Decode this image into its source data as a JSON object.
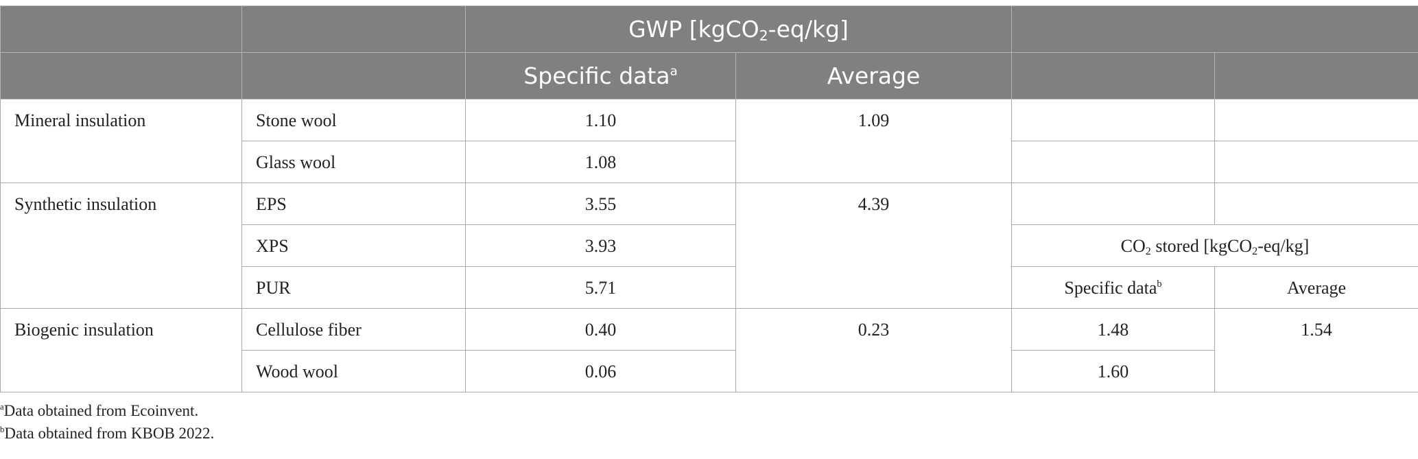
{
  "header": {
    "gwp_main": "GWP [kgCO",
    "gwp_sub": "2",
    "gwp_tail": "-eq/kg]",
    "specific_label": "Specific data",
    "specific_sup": "a",
    "average_label": "Average"
  },
  "co2": {
    "title_pre": "CO",
    "title_sub1": "2",
    "title_mid": " stored [kgCO",
    "title_sub2": "2",
    "title_tail": "-eq/kg]",
    "specific_label": "Specific data",
    "specific_sup": "b",
    "average_label": "Average"
  },
  "groups": [
    {
      "name": "Mineral insulation",
      "average": "1.09",
      "materials": [
        {
          "name": "Stone wool",
          "specific": "1.10"
        },
        {
          "name": "Glass wool",
          "specific": "1.08"
        }
      ]
    },
    {
      "name": "Synthetic insulation",
      "average": "4.39",
      "materials": [
        {
          "name": "EPS",
          "specific": "3.55"
        },
        {
          "name": "XPS",
          "specific": "3.93"
        },
        {
          "name": "PUR",
          "specific": "5.71"
        }
      ]
    },
    {
      "name": "Biogenic insulation",
      "average": "0.23",
      "co2_average": "1.54",
      "materials": [
        {
          "name": "Cellulose fiber",
          "specific": "0.40",
          "co2_specific": "1.48"
        },
        {
          "name": "Wood wool",
          "specific": "0.06",
          "co2_specific": "1.60"
        }
      ]
    }
  ],
  "footnotes": [
    {
      "mark": "a",
      "text": "Data obtained from Ecoinvent."
    },
    {
      "mark": "b",
      "text": "Data obtained from KBOB 2022."
    }
  ]
}
